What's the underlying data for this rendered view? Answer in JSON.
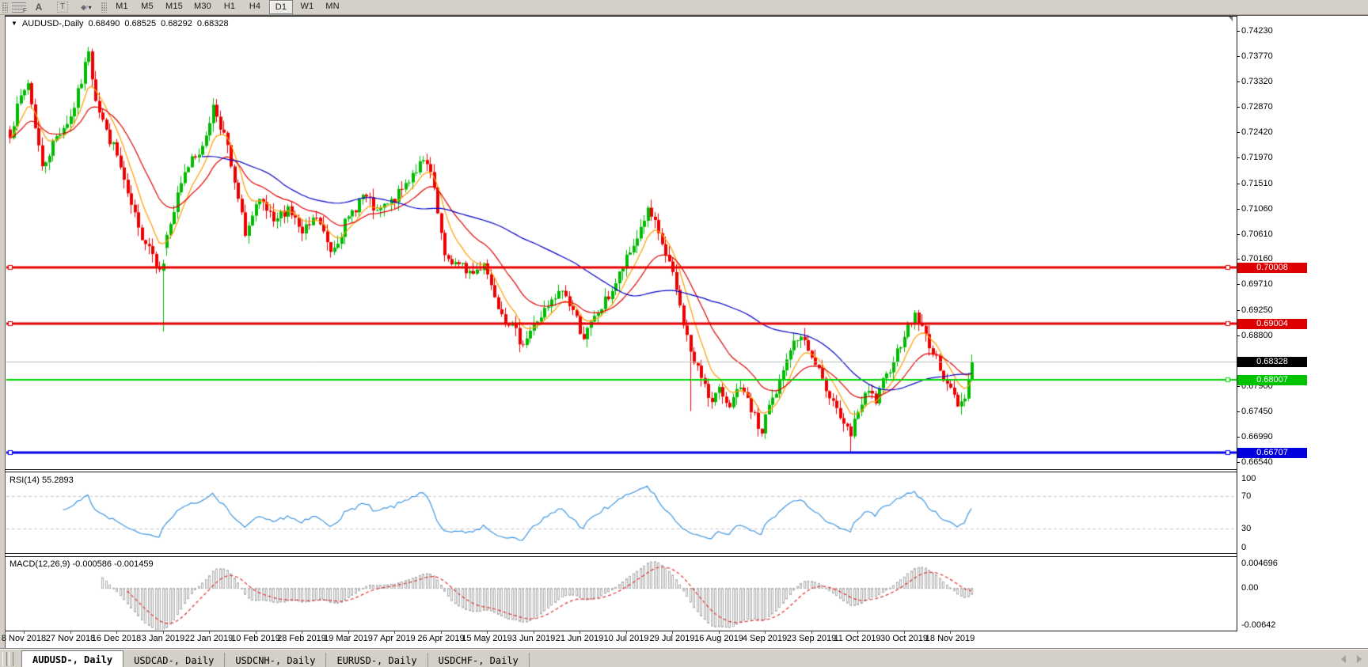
{
  "toolbar": {
    "tools": [
      {
        "name": "fibonacci-tool"
      },
      {
        "name": "text-tool",
        "glyph": "A"
      },
      {
        "name": "text-label-tool",
        "glyph": "T"
      },
      {
        "name": "shapes-tool"
      }
    ],
    "timeframes": [
      {
        "label": "M1",
        "active": false
      },
      {
        "label": "M5",
        "active": false
      },
      {
        "label": "M15",
        "active": false
      },
      {
        "label": "M30",
        "active": false
      },
      {
        "label": "H1",
        "active": false
      },
      {
        "label": "H4",
        "active": false
      },
      {
        "label": "D1",
        "active": true
      },
      {
        "label": "W1",
        "active": false
      },
      {
        "label": "MN",
        "active": false
      }
    ]
  },
  "chart_header": {
    "symbol": "AUDUSD-,Daily",
    "open": "0.68490",
    "high": "0.68525",
    "low": "0.68292",
    "close": "0.68328"
  },
  "price_axis": {
    "tick_labels": [
      "0.74230",
      "0.73770",
      "0.73320",
      "0.72870",
      "0.72420",
      "0.71970",
      "0.71510",
      "0.71060",
      "0.70610",
      "0.70160",
      "0.69710",
      "0.69250",
      "0.68800",
      "0.67900",
      "0.67450",
      "0.66990",
      "0.66540"
    ],
    "badges": [
      {
        "text": "0.70008",
        "price": 0.70008,
        "color": "#dd0000"
      },
      {
        "text": "0.69004",
        "price": 0.69004,
        "color": "#dd0000"
      },
      {
        "text": "0.68328",
        "price": 0.68328,
        "color": "#000000"
      },
      {
        "text": "0.68007",
        "price": 0.68007,
        "color": "#00c300"
      },
      {
        "text": "0.66707",
        "price": 0.66707,
        "color": "#0000dd"
      }
    ]
  },
  "chart_data": {
    "type": "candlestick",
    "symbol": "AUDUSD-",
    "timeframe": "Daily",
    "y_range": [
      0.6643,
      0.7448
    ],
    "candle_count": 271,
    "up_color": "#00bb00",
    "down_color": "#ee0000",
    "noise_seed": 7,
    "close_noise": 0.0011,
    "wick_noise": 0.0016,
    "close_keypoints": [
      [
        0,
        0.7235
      ],
      [
        2,
        0.729
      ],
      [
        5,
        0.733
      ],
      [
        9,
        0.718
      ],
      [
        13,
        0.7235
      ],
      [
        17,
        0.727
      ],
      [
        20,
        0.733
      ],
      [
        22,
        0.7388
      ],
      [
        24,
        0.73
      ],
      [
        27,
        0.7245
      ],
      [
        30,
        0.72
      ],
      [
        33,
        0.713
      ],
      [
        36,
        0.707
      ],
      [
        39,
        0.704
      ],
      [
        42,
        0.7
      ],
      [
        44,
        0.706
      ],
      [
        46,
        0.71
      ],
      [
        48,
        0.715
      ],
      [
        51,
        0.72
      ],
      [
        54,
        0.7215
      ],
      [
        57,
        0.729
      ],
      [
        60,
        0.724
      ],
      [
        63,
        0.715
      ],
      [
        66,
        0.706
      ],
      [
        70,
        0.712
      ],
      [
        74,
        0.708
      ],
      [
        78,
        0.711
      ],
      [
        82,
        0.706
      ],
      [
        86,
        0.709
      ],
      [
        90,
        0.703
      ],
      [
        95,
        0.709
      ],
      [
        99,
        0.713
      ],
      [
        103,
        0.71
      ],
      [
        108,
        0.712
      ],
      [
        113,
        0.717
      ],
      [
        116,
        0.719
      ],
      [
        118,
        0.717
      ],
      [
        122,
        0.702
      ],
      [
        126,
        0.7005
      ],
      [
        130,
        0.699
      ],
      [
        133,
        0.701
      ],
      [
        136,
        0.695
      ],
      [
        140,
        0.69
      ],
      [
        144,
        0.6865
      ],
      [
        147,
        0.69
      ],
      [
        151,
        0.693
      ],
      [
        155,
        0.696
      ],
      [
        158,
        0.6925
      ],
      [
        161,
        0.6875
      ],
      [
        165,
        0.692
      ],
      [
        169,
        0.696
      ],
      [
        172,
        0.7
      ],
      [
        175,
        0.704
      ],
      [
        179,
        0.7105
      ],
      [
        182,
        0.706
      ],
      [
        186,
        0.699
      ],
      [
        189,
        0.69
      ],
      [
        192,
        0.683
      ],
      [
        195,
        0.6795
      ],
      [
        197,
        0.676
      ],
      [
        199,
        0.6785
      ],
      [
        202,
        0.6755
      ],
      [
        205,
        0.6785
      ],
      [
        208,
        0.6745
      ],
      [
        211,
        0.6705
      ],
      [
        212,
        0.674
      ],
      [
        215,
        0.6775
      ],
      [
        219,
        0.6855
      ],
      [
        222,
        0.688
      ],
      [
        225,
        0.684
      ],
      [
        228,
        0.68
      ],
      [
        231,
        0.6765
      ],
      [
        234,
        0.672
      ],
      [
        236,
        0.67
      ],
      [
        238,
        0.6745
      ],
      [
        241,
        0.678
      ],
      [
        243,
        0.676
      ],
      [
        246,
        0.681
      ],
      [
        249,
        0.6855
      ],
      [
        251,
        0.688
      ],
      [
        254,
        0.692
      ],
      [
        256,
        0.6895
      ],
      [
        258,
        0.686
      ],
      [
        261,
        0.682
      ],
      [
        264,
        0.6785
      ],
      [
        266,
        0.6755
      ],
      [
        268,
        0.677
      ],
      [
        270,
        0.68328
      ]
    ],
    "candle_overrides": {
      "22": {
        "high": 0.7394
      },
      "43": {
        "open": 0.6995,
        "close": 0.7008,
        "high": 0.7015,
        "low": 0.6887
      },
      "191": {
        "low": 0.6745
      },
      "236": {
        "low": 0.6672
      }
    },
    "moving_averages": [
      {
        "period": 8,
        "method": "ema",
        "color": "#ff9c00"
      },
      {
        "period": 21,
        "method": "ema",
        "color": "#e00000"
      },
      {
        "period": 55,
        "method": "sma",
        "color": "#0000c8"
      }
    ],
    "horizontal_lines": [
      {
        "price": 0.70008,
        "color": "#e60000",
        "width": 3
      },
      {
        "price": 0.69004,
        "color": "#e60000",
        "width": 3
      },
      {
        "price": 0.68007,
        "color": "#00d400",
        "width": 2
      },
      {
        "price": 0.66707,
        "color": "#0000e8",
        "width": 3
      }
    ],
    "current_price_line": {
      "price": 0.68328,
      "color": "#bcbcbc"
    },
    "x_axis_dates": [
      "8 Nov 2018",
      "27 Nov 2018",
      "16 Dec 2018",
      "3 Jan 2019",
      "22 Jan 2019",
      "10 Feb 2019",
      "28 Feb 2019",
      "19 Mar 2019",
      "7 Apr 2019",
      "26 Apr 2019",
      "15 May 2019",
      "3 Jun 2019",
      "21 Jun 2019",
      "10 Jul 2019",
      "29 Jul 2019",
      "16 Aug 2019",
      "4 Sep 2019",
      "23 Sep 2019",
      "11 Oct 2019",
      "30 Oct 2019",
      "18 Nov 2019"
    ]
  },
  "indicators": {
    "rsi": {
      "name": "RSI(14)",
      "value": "55.2893",
      "range": [
        0,
        100
      ],
      "levels": [
        70,
        30
      ],
      "tick_labels": [
        {
          "text": "100",
          "value": 100
        },
        {
          "text": "70",
          "value": 70
        },
        {
          "text": "30",
          "value": 30
        },
        {
          "text": "0",
          "value": 0
        }
      ],
      "line_color": "#3f96e0",
      "level_color": "#c8c8c8"
    },
    "macd": {
      "name": "MACD(12,26,9)",
      "value": "-0.000586 -0.001459",
      "range": [
        -0.0065,
        0.0048
      ],
      "tick_labels": [
        {
          "text": "0.004696",
          "value": 0.004696
        },
        {
          "text": "0.00",
          "value": 0
        },
        {
          "text": "-0.00642",
          "value": -0.00642
        }
      ],
      "histogram_color": "#b0b0b0",
      "signal_color": "#e03030"
    }
  },
  "status_bar": {
    "tabs": [
      {
        "label": "AUDUSD-, Daily",
        "active": true
      },
      {
        "label": "USDCAD-, Daily",
        "active": false
      },
      {
        "label": "USDCNH-, Daily",
        "active": false
      },
      {
        "label": "EURUSD-, Daily",
        "active": false
      },
      {
        "label": "USDCHF-, Daily",
        "active": false
      }
    ]
  },
  "colors": {
    "chrome": "#d4d0c8",
    "panel_bg": "#ffffff",
    "text": "#000000"
  }
}
